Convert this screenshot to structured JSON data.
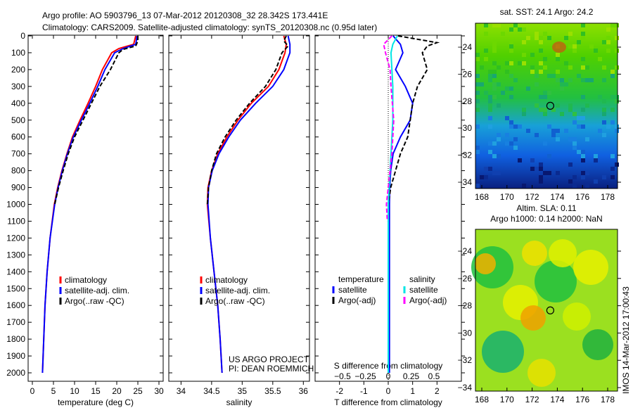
{
  "title_line1": "Argo profile: AO 5903796_13 07-Mar-2012 20120308_32 28.342S 173.441E",
  "title_line2": "Climatology: CARS2009. Satellite-adjusted climatology: synTS_20120308.nc (0.95d later)",
  "project_line1": "US ARGO PROJECT",
  "project_line2": "PI: DEAN ROEMMICH",
  "timestamp": "IMOS 14-Mar-2012 17:00:43",
  "chart_data": [
    {
      "type": "line",
      "id": "temp",
      "xlabel": "temperature (deg C)",
      "xlim": [
        -1,
        31
      ],
      "xticks": [
        0,
        5,
        10,
        15,
        20,
        25,
        30
      ],
      "ylim": [
        2050,
        0
      ],
      "yticks": [
        0,
        100,
        200,
        300,
        400,
        500,
        600,
        700,
        800,
        900,
        1000,
        1100,
        1200,
        1300,
        1400,
        1500,
        1600,
        1700,
        1800,
        1900,
        2000
      ],
      "legend": [
        "climatology",
        "satellite-adj. clim.",
        "Argo(..raw -QC)"
      ],
      "series": [
        {
          "name": "climatology",
          "color": "#ff0000",
          "depth": [
            0,
            50,
            75,
            100,
            200,
            300,
            400,
            500,
            600,
            700,
            800,
            900,
            1000,
            1200,
            1400,
            1600,
            1800,
            2000
          ],
          "values": [
            24.5,
            24,
            20.5,
            18.8,
            16.6,
            15,
            13.2,
            11.3,
            9.5,
            8.2,
            7,
            6,
            5.2,
            4.2,
            3.5,
            3,
            2.7,
            2.4
          ]
        },
        {
          "name": "satellite-adj. clim.",
          "color": "#0000ff",
          "depth": [
            0,
            50,
            75,
            100,
            200,
            300,
            400,
            500,
            600,
            700,
            800,
            900,
            1000,
            1200,
            1400,
            1600,
            1800,
            2000
          ],
          "values": [
            24.8,
            24.5,
            21.5,
            19.5,
            17.2,
            15.5,
            13.6,
            11.6,
            9.7,
            8.3,
            7.1,
            6.1,
            5.3,
            4.2,
            3.5,
            3,
            2.7,
            2.4
          ]
        },
        {
          "name": "Argo(..raw -QC)",
          "color": "#000000",
          "dashed": true,
          "depth": [
            0,
            30,
            60,
            80,
            100,
            150,
            200,
            300,
            400,
            500,
            600,
            700,
            800,
            900,
            1000
          ],
          "values": [
            25,
            25,
            24.5,
            21.5,
            20.5,
            19.5,
            18.5,
            16,
            14,
            12,
            10,
            8.5,
            7.3,
            6.2,
            5.3
          ]
        }
      ]
    },
    {
      "type": "line",
      "id": "sal",
      "xlabel": "salinity",
      "xlim": [
        33.8,
        36.1
      ],
      "xticks": [
        34,
        34.5,
        35,
        35.5,
        36
      ],
      "ylim": [
        2050,
        0
      ],
      "legend": [
        "climatology",
        "satellite-adj. clim.",
        "Argo(..raw -QC)"
      ],
      "series": [
        {
          "name": "climatology",
          "color": "#ff0000",
          "depth": [
            0,
            50,
            100,
            200,
            300,
            400,
            500,
            600,
            700,
            800,
            900,
            1000,
            1200,
            1400,
            1600,
            1800,
            2000
          ],
          "values": [
            35.68,
            35.72,
            35.7,
            35.6,
            35.43,
            35.15,
            34.93,
            34.75,
            34.6,
            34.5,
            34.44,
            34.43,
            34.48,
            34.54,
            34.6,
            34.64,
            34.67
          ]
        },
        {
          "name": "satellite-adj. clim.",
          "color": "#0000ff",
          "depth": [
            0,
            50,
            100,
            200,
            300,
            400,
            500,
            600,
            700,
            800,
            900,
            1000,
            1200,
            1400,
            1600,
            1800,
            2000
          ],
          "values": [
            35.75,
            35.78,
            35.78,
            35.68,
            35.5,
            35.22,
            34.97,
            34.78,
            34.62,
            34.51,
            34.45,
            34.44,
            34.48,
            34.54,
            34.6,
            34.64,
            34.67
          ]
        },
        {
          "name": "Argo(..raw -QC)",
          "color": "#000000",
          "dashed": true,
          "depth": [
            0,
            30,
            60,
            100,
            200,
            300,
            400,
            500,
            600,
            700,
            800,
            900,
            1000
          ],
          "values": [
            35.72,
            35.68,
            35.75,
            35.65,
            35.55,
            35.38,
            35.12,
            34.9,
            34.72,
            34.58,
            34.5,
            34.45,
            34.43
          ]
        }
      ]
    },
    {
      "type": "line",
      "id": "diff",
      "xlabel": "T difference from climatology",
      "x2label": "S difference from climatology",
      "xlim": [
        -3,
        3
      ],
      "xticks": [
        -2,
        -1,
        0,
        1,
        2
      ],
      "x2ticks": [
        -0.5,
        -0.25,
        0,
        0.25,
        0.5
      ],
      "ylim": [
        2050,
        0
      ],
      "legend_headers": [
        "temperature",
        "salinity"
      ],
      "legend": [
        "satellite",
        "Argo(-adj)",
        "satellite",
        "Argo(-adj)"
      ],
      "series": [
        {
          "name": "T satellite",
          "axis": "T",
          "color": "#0000ff",
          "depth": [
            0,
            50,
            100,
            200,
            300,
            400,
            500,
            600,
            700,
            800,
            900,
            1000,
            1200,
            2000
          ],
          "values": [
            0.2,
            0.5,
            0.6,
            0.3,
            0.7,
            1.0,
            0.9,
            0.5,
            0.2,
            0.1,
            0.06,
            0.05,
            0.05,
            0.05
          ]
        },
        {
          "name": "T Argo(-adj)",
          "axis": "T",
          "color": "#000000",
          "dashed": true,
          "depth": [
            0,
            20,
            40,
            60,
            100,
            200,
            300,
            400,
            500,
            600,
            700,
            800,
            900,
            1000
          ],
          "values": [
            0.4,
            1.2,
            2.0,
            1.6,
            1.4,
            1.6,
            1.2,
            1.0,
            0.9,
            0.8,
            0.5,
            0.3,
            0.1,
            0
          ]
        },
        {
          "name": "S satellite",
          "axis": "S",
          "color": "#00e5e5",
          "depth": [
            0,
            50,
            100,
            200,
            300,
            500,
            700,
            900,
            1000,
            1200,
            2000
          ],
          "values": [
            0.1,
            0.05,
            0.03,
            0.04,
            0.05,
            0.05,
            0.03,
            0.01,
            0,
            0,
            0
          ]
        },
        {
          "name": "S Argo(-adj)",
          "axis": "S",
          "color": "#ff00ff",
          "dashed": true,
          "depth": [
            0,
            50,
            100,
            200,
            300,
            500,
            700,
            900,
            1000,
            1100
          ],
          "values": [
            0.04,
            -0.05,
            -0.03,
            0.02,
            0.03,
            0.06,
            0.04,
            0,
            -0.02,
            -0.01
          ]
        }
      ]
    }
  ],
  "maps": [
    {
      "title": "sat. SST: 24.1  Argo: 24.2",
      "xticks": [
        168,
        170,
        172,
        174,
        176,
        178
      ],
      "yticks": [
        -24,
        -26,
        -28,
        -30,
        -32,
        -34
      ]
    },
    {
      "title1": "Altim. SLA: 0.11",
      "title2": "Argo h1000: 0.14  h2000: NaN",
      "xticks": [
        168,
        170,
        172,
        174,
        176,
        178
      ],
      "yticks": [
        -24,
        -26,
        -28,
        -30,
        -32,
        -34
      ]
    }
  ],
  "float_position": {
    "lon": 173.441,
    "lat": -28.342
  }
}
